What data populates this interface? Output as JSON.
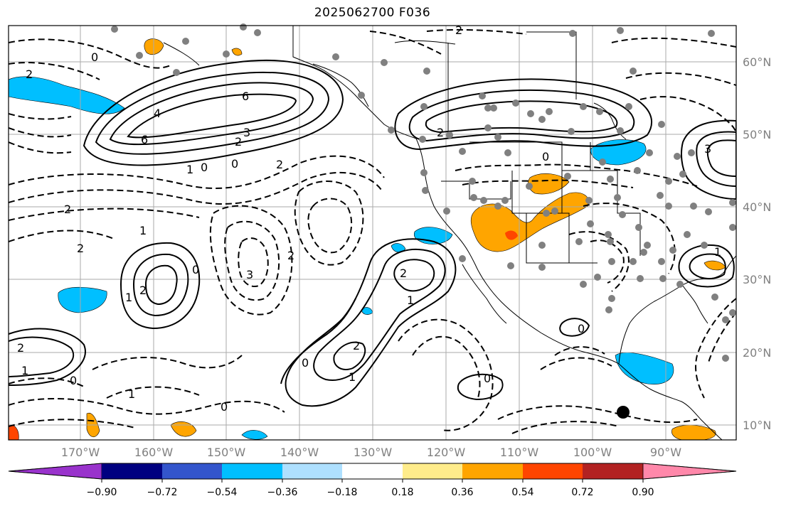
{
  "title": "2025062700 F036",
  "map": {
    "lon_labels": [
      "170°W",
      "160°W",
      "150°W",
      "140°W",
      "130°W",
      "120°W",
      "110°W",
      "100°W",
      "90°W"
    ],
    "lat_labels": [
      "60°N",
      "50°N",
      "40°N",
      "30°N",
      "20°N",
      "10°N"
    ],
    "contour_labels": [
      "6",
      "4",
      "6",
      "3",
      "2",
      "0",
      "1",
      "0",
      "2",
      "2",
      "1",
      "2",
      "0",
      "2",
      "1",
      "3",
      "2",
      "2",
      "1",
      "2",
      "1",
      "0",
      "2",
      "1",
      "0",
      "2",
      "0",
      "1",
      "0",
      "0",
      "2",
      "0",
      "3",
      "1",
      "0",
      "2"
    ]
  },
  "colorbar": {
    "ticks": [
      "−0.90",
      "−0.72",
      "−0.54",
      "−0.36",
      "−0.18",
      "0.18",
      "0.36",
      "0.54",
      "0.72",
      "0.90"
    ],
    "colors": [
      "#9933cc",
      "#000080",
      "#3355cc",
      "#00bfff",
      "#aee0ff",
      "#ffffff",
      "#ffec8b",
      "#ffa500",
      "#ff4500",
      "#b22222",
      "#ff88aa"
    ]
  }
}
